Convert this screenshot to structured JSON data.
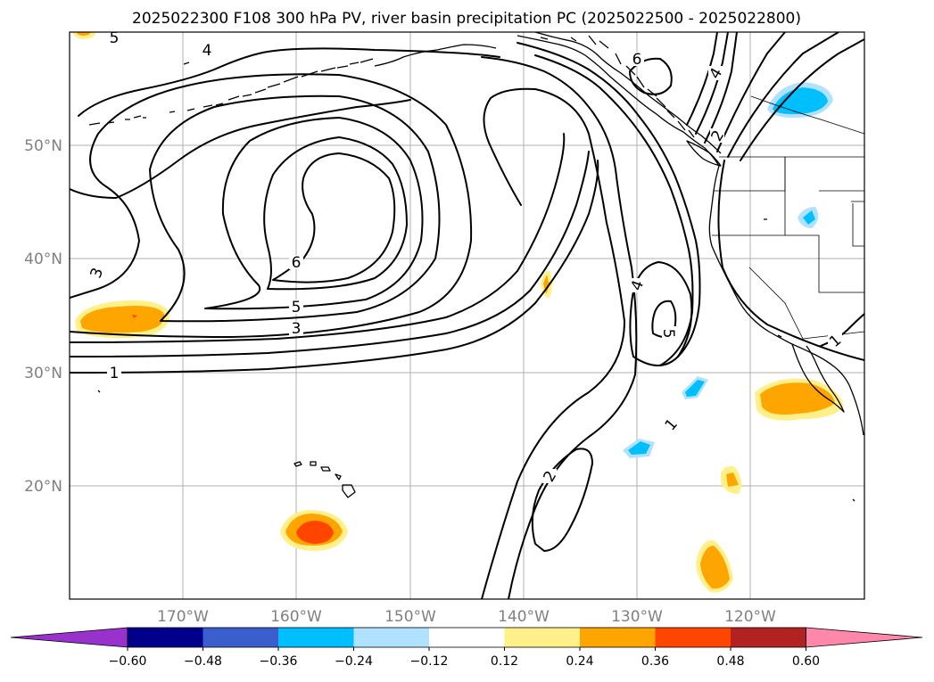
{
  "title": "2025022300 F108 300 hPa PV, river basin precipitation PC (2025022500 - 2025022800)",
  "lat_labels": [
    "50°N",
    "40°N",
    "30°N",
    "20°N"
  ],
  "lon_labels": [
    "170°W",
    "160°W",
    "150°W",
    "140°W",
    "130°W",
    "120°W"
  ],
  "contour_labels": [
    "5",
    "4",
    "6",
    "3",
    "6",
    "5",
    "3",
    "1",
    "4",
    "5",
    "4",
    "2",
    "2",
    "1",
    "1"
  ],
  "colorbar": {
    "ticks": [
      "−0.60",
      "−0.48",
      "−0.36",
      "−0.24",
      "−0.12",
      "0.12",
      "0.24",
      "0.36",
      "0.48",
      "0.60"
    ],
    "colors": [
      "#9932cc",
      "#00008b",
      "#3a5fcd",
      "#00bfff",
      "#b0e2ff",
      "#ffffff",
      "#fff08a",
      "#ffa500",
      "#ff4500",
      "#b22222",
      "#ff88aa"
    ]
  },
  "colors": {
    "positive_weak": "#fff08a",
    "positive_mid": "#ffa500",
    "positive_strong": "#ff4500",
    "negative_mid": "#00bfff",
    "negative_weak": "#b0e2ff"
  }
}
